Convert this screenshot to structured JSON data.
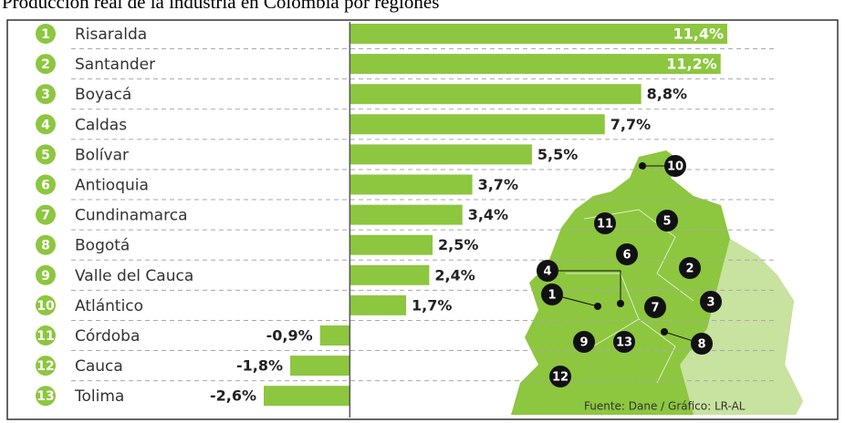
{
  "chart_data": {
    "type": "bar",
    "orientation": "horizontal",
    "title": "Producción real de la industria en Colombia por regiones",
    "source": "Fuente: Dane / Gráfico: LR-AL",
    "ranks": [
      "1",
      "2",
      "3",
      "4",
      "5",
      "6",
      "7",
      "8",
      "9",
      "10",
      "11",
      "12",
      "13"
    ],
    "categories": [
      "Risaralda",
      "Santander",
      "Boyacá",
      "Caldas",
      "Bolívar",
      "Antioquia",
      "Cundinamarca",
      "Bogotá",
      "Valle del Cauca",
      "Atlántico",
      "Córdoba",
      "Cauca",
      "Tolima"
    ],
    "values": [
      11.4,
      11.2,
      8.8,
      7.7,
      5.5,
      3.7,
      3.4,
      2.5,
      2.4,
      1.7,
      -0.9,
      -1.8,
      -2.6
    ],
    "value_labels": [
      "11,4%",
      "11,2%",
      "8,8%",
      "7,7%",
      "5,5%",
      "3,7%",
      "3,4%",
      "2,5%",
      "2,4%",
      "1,7%",
      "-0,9%",
      "-1,8%",
      "-2,6%"
    ],
    "color": "#8dc63f"
  }
}
